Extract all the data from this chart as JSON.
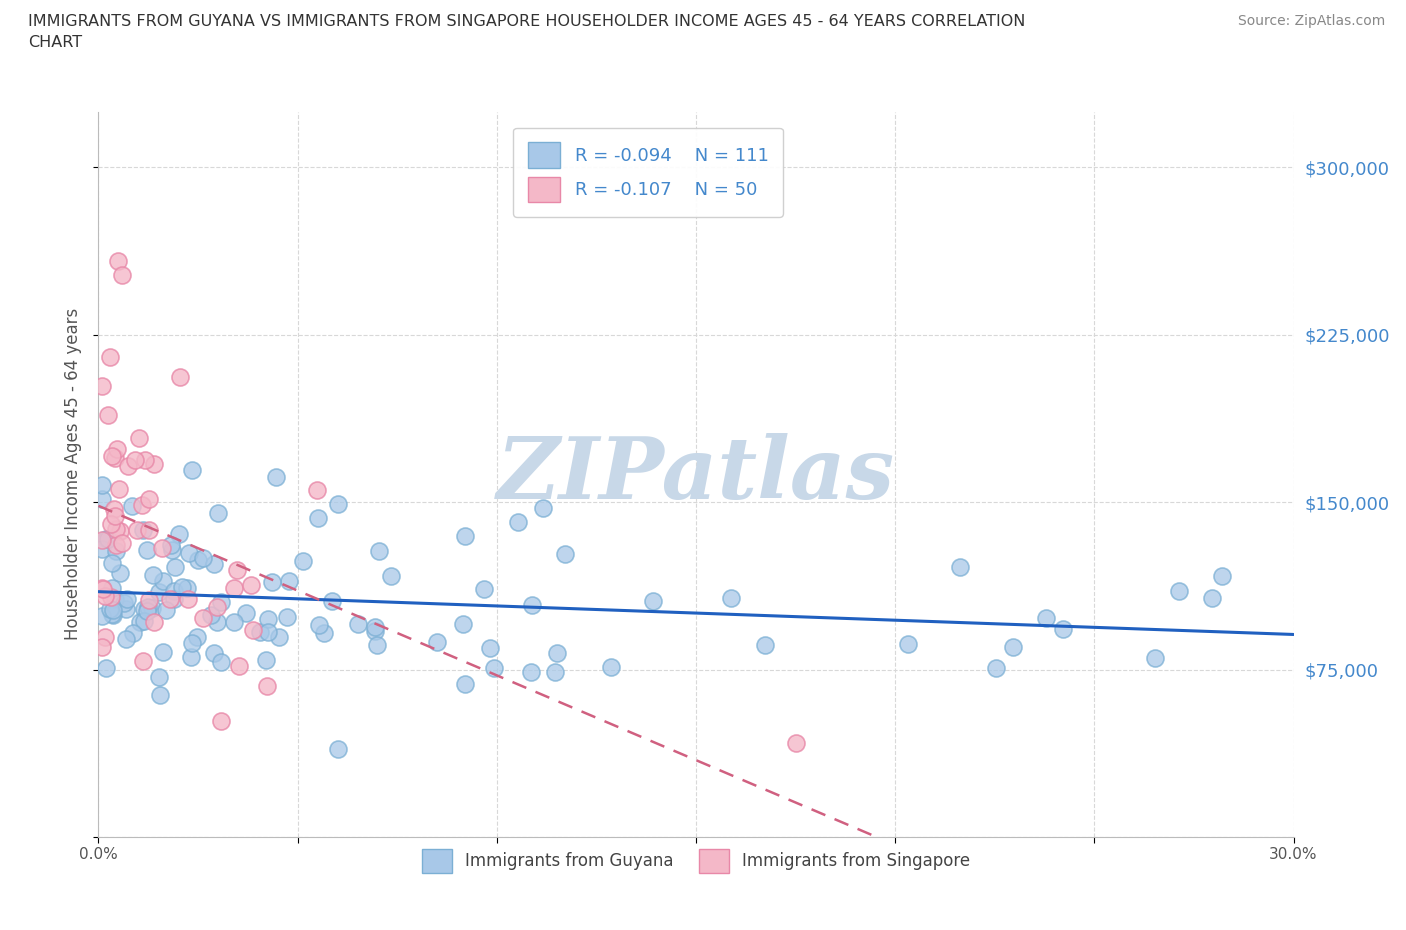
{
  "title": "IMMIGRANTS FROM GUYANA VS IMMIGRANTS FROM SINGAPORE HOUSEHOLDER INCOME AGES 45 - 64 YEARS CORRELATION\nCHART",
  "source_text": "Source: ZipAtlas.com",
  "ylabel": "Householder Income Ages 45 - 64 years",
  "xlim": [
    0.0,
    0.3
  ],
  "ylim": [
    0,
    325000
  ],
  "guyana_color": "#a8c8e8",
  "guyana_edge_color": "#7bafd4",
  "singapore_color": "#f4b8c8",
  "singapore_edge_color": "#e888a8",
  "guyana_line_color": "#2060c0",
  "singapore_line_color": "#d06080",
  "background_color": "#ffffff",
  "watermark_text": "ZIPatlas",
  "watermark_color": "#c8d8e8",
  "legend_r_guyana": "-0.094",
  "legend_n_guyana": "111",
  "legend_r_singapore": "-0.107",
  "legend_n_singapore": "50",
  "yticks": [
    0,
    75000,
    150000,
    225000,
    300000
  ],
  "xticks": [
    0.0,
    0.05,
    0.1,
    0.15,
    0.2,
    0.25,
    0.3
  ],
  "grid_color": "#d8d8d8",
  "yaxis_label_color": "#4488cc",
  "title_color": "#333333",
  "legend_text_color": "#4488cc"
}
